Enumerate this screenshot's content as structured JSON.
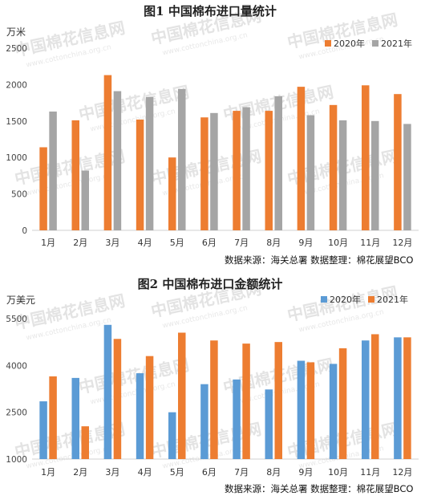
{
  "watermark": {
    "text": "中国棉花信息网",
    "url": "www.cottonchina.org.cn"
  },
  "colors": {
    "orange": "#ED7D31",
    "gray": "#A5A5A5",
    "blue": "#5B9BD5"
  },
  "chart_data": [
    {
      "type": "bar",
      "title": "图1  中国棉布进口量统计",
      "ylabel": "万米",
      "ylim": [
        0,
        2500
      ],
      "yticks": [
        0,
        500,
        1000,
        1500,
        2000,
        2500
      ],
      "grid": false,
      "legend_position": "top-right",
      "categories": [
        "1月",
        "2月",
        "3月",
        "4月",
        "5月",
        "6月",
        "7月",
        "8月",
        "9月",
        "10月",
        "11月",
        "12月"
      ],
      "series": [
        {
          "name": "2020年",
          "color": "#ED7D31",
          "values": [
            1140,
            1510,
            2130,
            1520,
            1000,
            1550,
            1640,
            1640,
            1970,
            1720,
            1990,
            1870
          ]
        },
        {
          "name": "2021年",
          "color": "#A5A5A5",
          "values": [
            1630,
            820,
            1910,
            1830,
            1940,
            1610,
            1690,
            1840,
            1580,
            1510,
            1500,
            1460
          ]
        }
      ],
      "source": "数据来源：海关总署  数据整理：棉花展望BCO"
    },
    {
      "type": "bar",
      "title": "图2  中国棉布进口金额统计",
      "ylabel": "万美元",
      "ylim": [
        1000,
        5500
      ],
      "yticks": [
        1000,
        2500,
        4000,
        5500
      ],
      "grid": false,
      "legend_position": "top-right",
      "categories": [
        "1月",
        "2月",
        "3月",
        "4月",
        "5月",
        "6月",
        "7月",
        "8月",
        "9月",
        "10月",
        "11月",
        "12月"
      ],
      "series": [
        {
          "name": "2020年",
          "color": "#5B9BD5",
          "values": [
            2850,
            3600,
            5300,
            3750,
            2500,
            3400,
            3550,
            3230,
            4150,
            4050,
            4800,
            4900
          ]
        },
        {
          "name": "2021年",
          "color": "#ED7D31",
          "values": [
            3650,
            2050,
            4850,
            4300,
            5050,
            4800,
            4700,
            4750,
            4100,
            4550,
            5000,
            4900
          ]
        }
      ],
      "source": "数据来源：海关总署  数据整理：棉花展望BCO"
    }
  ]
}
